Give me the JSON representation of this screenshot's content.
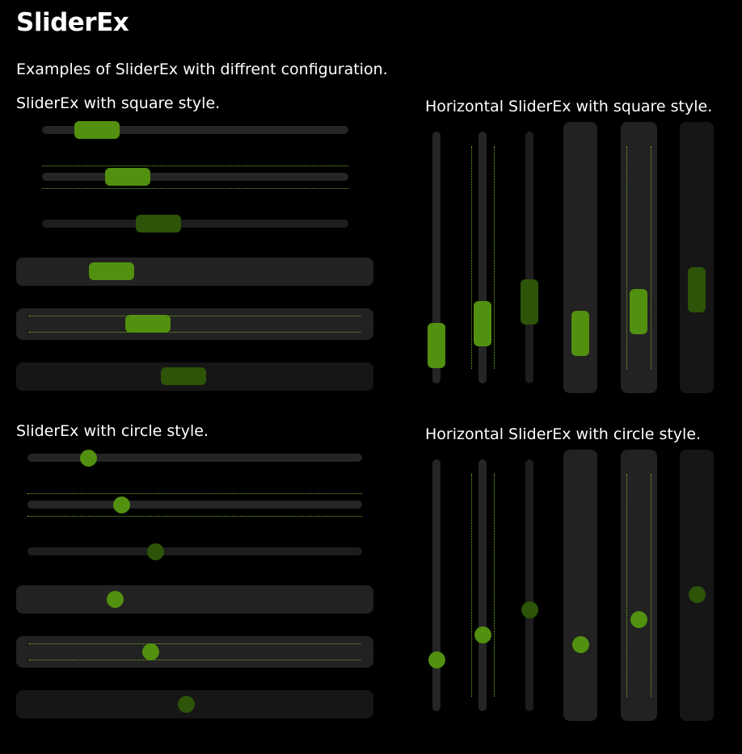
{
  "page": {
    "title": "SliderEx",
    "subtitle": "Examples of SliderEx with diffrent configuration."
  },
  "sections": {
    "square_label": "SliderEx with square style.",
    "square_vertical_label": "Horizontal SliderEx with square style.",
    "circle_label": "SliderEx with circle style.",
    "circle_vertical_label": "Horizontal SliderEx with circle style."
  },
  "colors": {
    "thumb": "#52900f",
    "thumb_disabled": "#2d5408",
    "track": "#252525",
    "panel": "#222222",
    "tick": "#74b025"
  },
  "sliders": {
    "square_horizontal": [
      {
        "variant": "track",
        "ticks": false,
        "enabled": true,
        "value_pct": 10
      },
      {
        "variant": "track",
        "ticks": true,
        "enabled": true,
        "value_pct": 20
      },
      {
        "variant": "track",
        "ticks": false,
        "enabled": false,
        "value_pct": 30
      },
      {
        "variant": "panel",
        "ticks": false,
        "enabled": true,
        "value_pct": 20
      },
      {
        "variant": "panel",
        "ticks": true,
        "enabled": true,
        "value_pct": 30
      },
      {
        "variant": "panel",
        "ticks": false,
        "enabled": false,
        "value_pct": 40
      }
    ],
    "square_vertical": [
      {
        "variant": "track",
        "ticks": false,
        "enabled": true,
        "value_pct": 10
      },
      {
        "variant": "track",
        "ticks": true,
        "enabled": true,
        "value_pct": 20
      },
      {
        "variant": "track",
        "ticks": false,
        "enabled": false,
        "value_pct": 30
      },
      {
        "variant": "panel",
        "ticks": false,
        "enabled": true,
        "value_pct": 20
      },
      {
        "variant": "panel",
        "ticks": true,
        "enabled": true,
        "value_pct": 30
      },
      {
        "variant": "panel",
        "ticks": false,
        "enabled": false,
        "value_pct": 40
      }
    ],
    "circle_horizontal": [
      {
        "variant": "track",
        "ticks": false,
        "enabled": true,
        "value_pct": 10
      },
      {
        "variant": "track",
        "ticks": true,
        "enabled": true,
        "value_pct": 20
      },
      {
        "variant": "track",
        "ticks": false,
        "enabled": false,
        "value_pct": 30
      },
      {
        "variant": "panel",
        "ticks": false,
        "enabled": true,
        "value_pct": 20
      },
      {
        "variant": "panel",
        "ticks": true,
        "enabled": true,
        "value_pct": 30
      },
      {
        "variant": "panel",
        "ticks": false,
        "enabled": false,
        "value_pct": 40
      }
    ],
    "circle_vertical": [
      {
        "variant": "track",
        "ticks": false,
        "enabled": true,
        "value_pct": 10
      },
      {
        "variant": "track",
        "ticks": true,
        "enabled": true,
        "value_pct": 20
      },
      {
        "variant": "track",
        "ticks": false,
        "enabled": false,
        "value_pct": 30
      },
      {
        "variant": "panel",
        "ticks": false,
        "enabled": true,
        "value_pct": 20
      },
      {
        "variant": "panel",
        "ticks": true,
        "enabled": true,
        "value_pct": 30
      },
      {
        "variant": "panel",
        "ticks": false,
        "enabled": false,
        "value_pct": 40
      }
    ]
  }
}
